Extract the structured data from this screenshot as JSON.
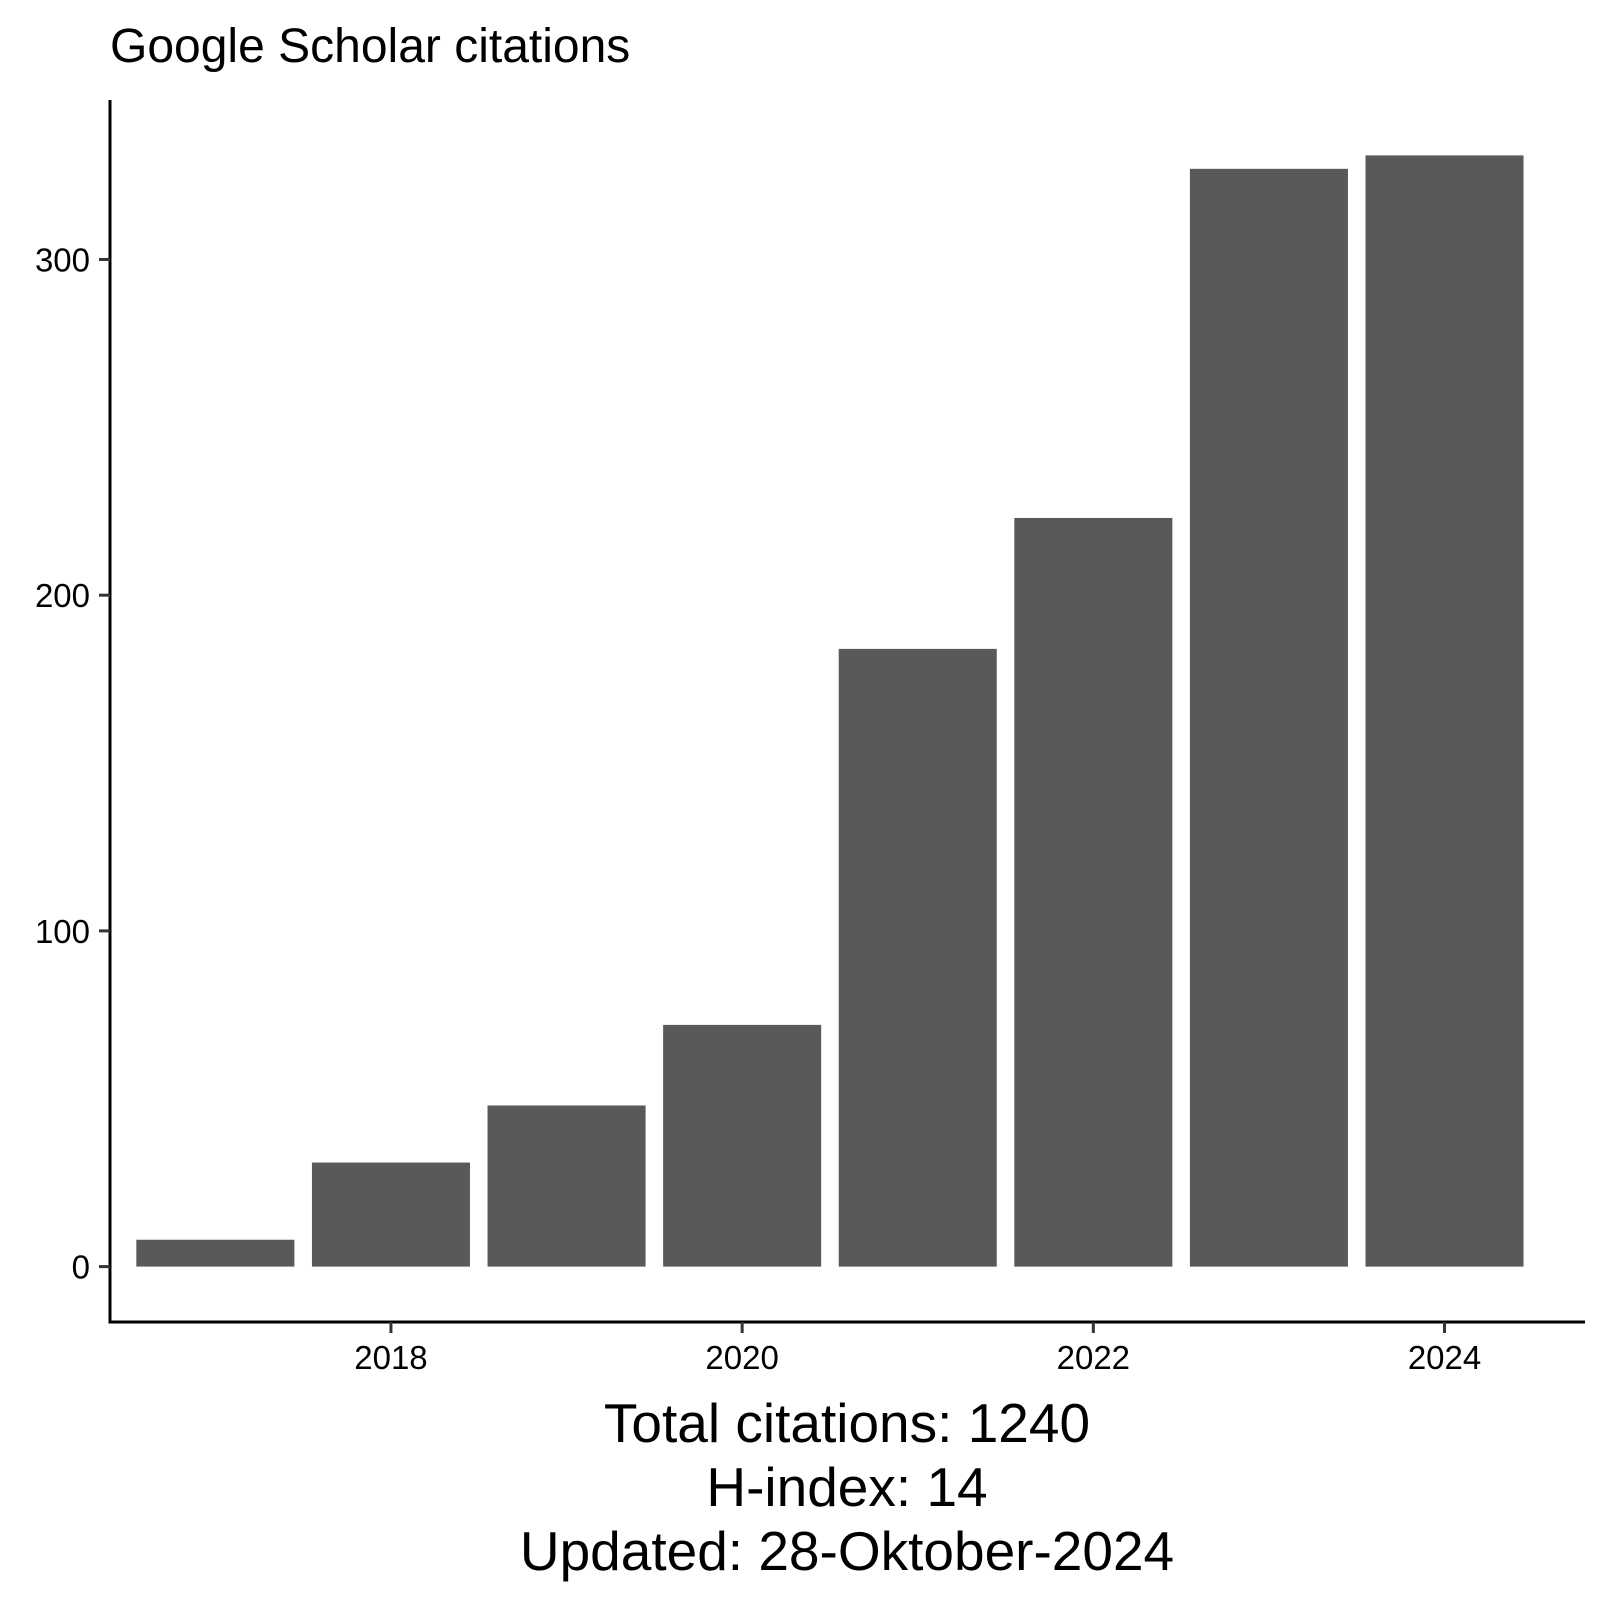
{
  "chart_data": {
    "type": "bar",
    "title": "Google Scholar citations",
    "xlabel": "",
    "ylabel": "",
    "categories": [
      2017,
      2018,
      2019,
      2020,
      2021,
      2022,
      2023,
      2024
    ],
    "values": [
      8,
      31,
      48,
      72,
      184,
      223,
      327,
      331
    ],
    "x_ticks": [
      2018,
      2020,
      2022,
      2024
    ],
    "y_ticks": [
      0,
      100,
      200,
      300
    ],
    "ylim": [
      -16.5,
      347.5
    ],
    "xlim": [
      2016.4,
      2024.8
    ],
    "grid": false,
    "legend": "none",
    "bar_color": "#595959",
    "caption": [
      "Total citations: 1240",
      "H-index: 14",
      "Updated: 28-Oktober-2024"
    ]
  }
}
